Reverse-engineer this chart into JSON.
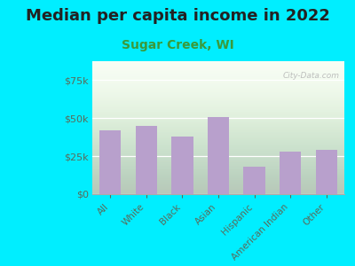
{
  "title": "Median per capita income in 2022",
  "subtitle": "Sugar Creek, WI",
  "categories": [
    "All",
    "White",
    "Black",
    "Asian",
    "Hispanic",
    "American Indian",
    "Other"
  ],
  "values": [
    42000,
    45000,
    38000,
    51000,
    18000,
    28000,
    29000
  ],
  "bar_color": "#b8a0cc",
  "background_color": "#00eeff",
  "title_color": "#222222",
  "subtitle_color": "#3a9a3a",
  "tick_color": "#5a6a5a",
  "ylim": [
    0,
    87500
  ],
  "yticks": [
    0,
    25000,
    50000,
    75000
  ],
  "watermark": "City-Data.com",
  "title_fontsize": 13,
  "subtitle_fontsize": 10
}
